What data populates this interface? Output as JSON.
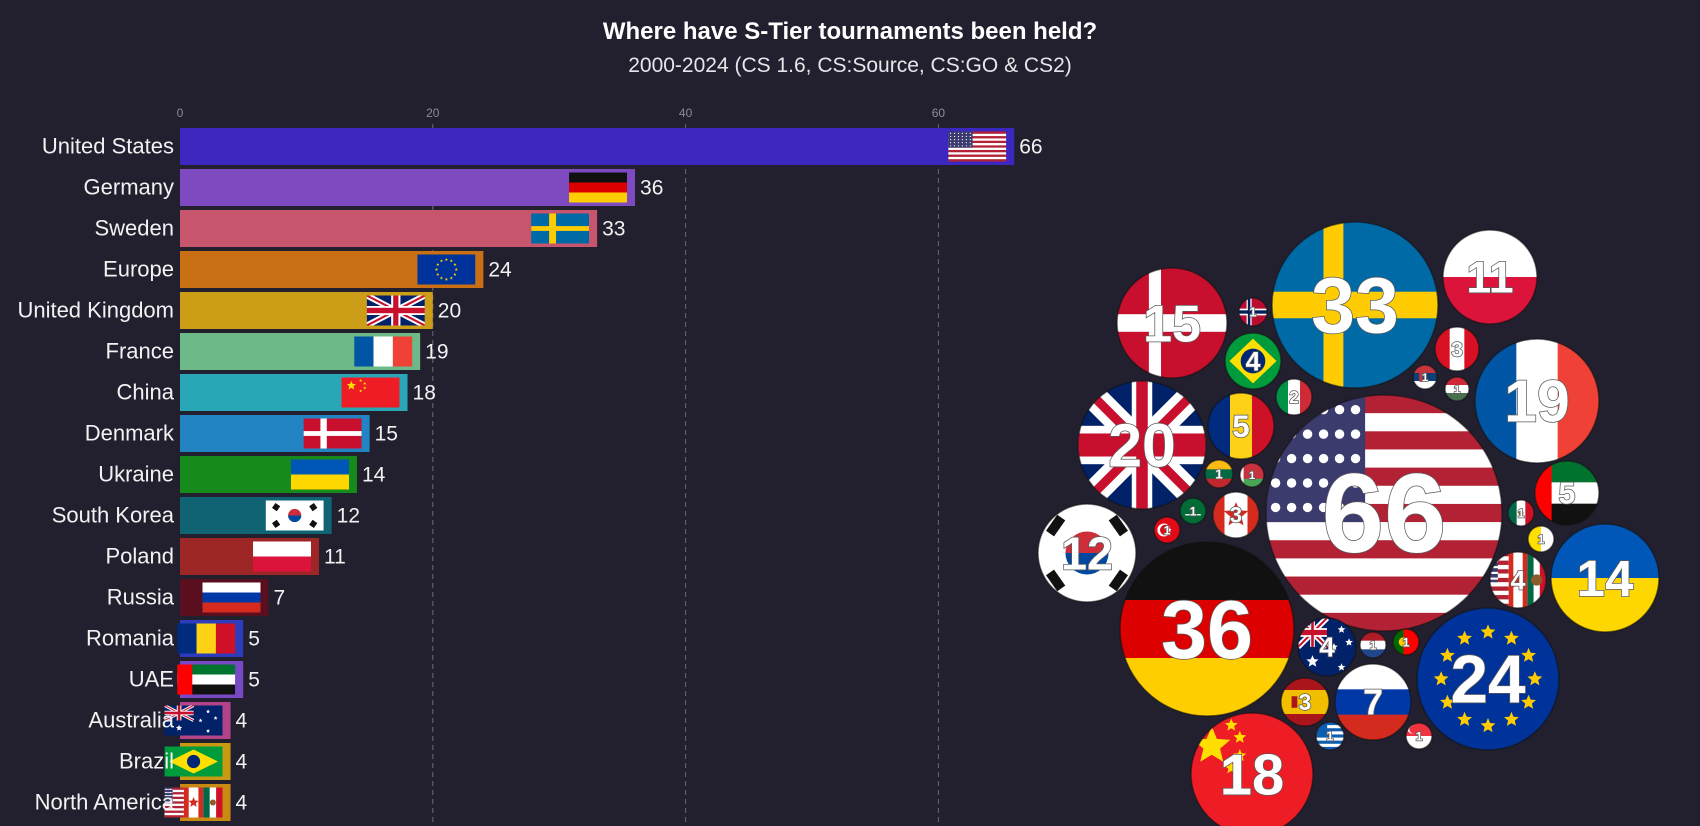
{
  "chart_data": {
    "type": "bar",
    "title": "Where have S-Tier tournaments been held?",
    "subtitle": "2000-2024 (CS 1.6, CS:Source, CS:GO & CS2)",
    "x_ticks": [
      0,
      20,
      40,
      60
    ],
    "xlim": [
      0,
      66
    ],
    "grid": true,
    "categories": [
      "United States",
      "Germany",
      "Sweden",
      "Europe",
      "United Kingdom",
      "France",
      "China",
      "Denmark",
      "Ukraine",
      "South Korea",
      "Poland",
      "Russia",
      "Romania",
      "UAE",
      "Australia",
      "Brazil",
      "North America"
    ],
    "values": [
      66,
      36,
      33,
      24,
      20,
      19,
      18,
      15,
      14,
      12,
      11,
      7,
      5,
      5,
      4,
      4,
      4
    ],
    "bar_colors": [
      "#3c27bf",
      "#7d4ac0",
      "#c7556e",
      "#c96f14",
      "#cc9d17",
      "#6db987",
      "#29a7b6",
      "#2384c4",
      "#178a1c",
      "#0f6373",
      "#9d2626",
      "#5a0f1f",
      "#2d3cbd",
      "#7948c5",
      "#b34489",
      "#c99a10",
      "#c98a14"
    ],
    "flags": [
      "us",
      "de",
      "se",
      "eu",
      "gb",
      "fr",
      "cn",
      "dk",
      "ua",
      "kr",
      "pl",
      "ru",
      "ro",
      "ae",
      "au",
      "br",
      "na"
    ],
    "bubbles": [
      {
        "label": "66",
        "flag": "us"
      },
      {
        "label": "36",
        "flag": "de"
      },
      {
        "label": "33",
        "flag": "se"
      },
      {
        "label": "24",
        "flag": "eu"
      },
      {
        "label": "20",
        "flag": "gb"
      },
      {
        "label": "19",
        "flag": "fr"
      },
      {
        "label": "18",
        "flag": "cn"
      },
      {
        "label": "15",
        "flag": "dk"
      },
      {
        "label": "14",
        "flag": "ua"
      },
      {
        "label": "12",
        "flag": "kr"
      },
      {
        "label": "11",
        "flag": "pl"
      },
      {
        "label": "7",
        "flag": "ru"
      },
      {
        "label": "5",
        "flag": "ro"
      },
      {
        "label": "5",
        "flag": "ae"
      },
      {
        "label": "4",
        "flag": "au"
      },
      {
        "label": "4",
        "flag": "br"
      },
      {
        "label": "4",
        "flag": "na"
      },
      {
        "label": "3",
        "flag": "es"
      },
      {
        "label": "3",
        "flag": "ca"
      },
      {
        "label": "3",
        "flag": "pe"
      },
      {
        "label": "2",
        "flag": "it"
      },
      {
        "label": "1",
        "flag": "no"
      },
      {
        "label": "1",
        "flag": "gr"
      },
      {
        "label": "1",
        "flag": "sa"
      },
      {
        "label": "1",
        "flag": "lt"
      },
      {
        "label": "1",
        "flag": "pt"
      },
      {
        "label": "1",
        "flag": "nl"
      },
      {
        "label": "1",
        "flag": "mx"
      },
      {
        "label": "1",
        "flag": "tr"
      },
      {
        "label": "1",
        "flag": "sg"
      },
      {
        "label": "1",
        "flag": "rs"
      },
      {
        "label": "1",
        "flag": "hu"
      },
      {
        "label": "1",
        "flag": "by"
      },
      {
        "label": "1",
        "flag": "va"
      },
      {
        "label": "1",
        "flag": "hk"
      }
    ]
  }
}
